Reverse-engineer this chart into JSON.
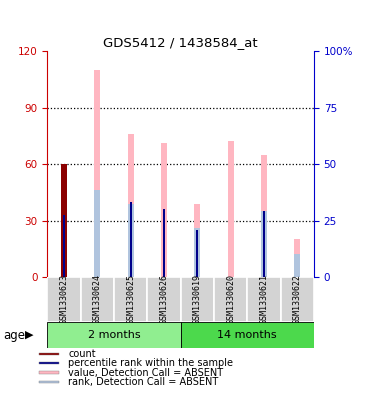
{
  "title": "GDS5412 / 1438584_at",
  "samples": [
    "GSM1330623",
    "GSM1330624",
    "GSM1330625",
    "GSM1330626",
    "GSM1330619",
    "GSM1330620",
    "GSM1330621",
    "GSM1330622"
  ],
  "ylim_left": [
    0,
    120
  ],
  "ylim_right": [
    0,
    100
  ],
  "yticks_left": [
    0,
    30,
    60,
    90,
    120
  ],
  "yticks_right": [
    0,
    25,
    50,
    75,
    100
  ],
  "ytick_labels_right": [
    "0",
    "25",
    "50",
    "75",
    "100%"
  ],
  "value_absent": [
    0,
    110,
    76,
    71,
    39,
    72,
    65,
    20
  ],
  "rank_absent": [
    0,
    46,
    39,
    0,
    26,
    0,
    35,
    12
  ],
  "count": [
    60,
    0,
    0,
    0,
    0,
    0,
    0,
    0
  ],
  "percentile_rank": [
    33,
    0,
    40,
    36,
    25,
    0,
    35,
    0
  ],
  "color_value_absent": "#FFB6C1",
  "color_rank_absent": "#B0C4DE",
  "color_count": "#8B0000",
  "color_percentile": "#00008B",
  "left_tick_color": "#cc0000",
  "right_tick_color": "#0000cc",
  "group1_color": "#90EE90",
  "group2_color": "#4CD94C",
  "legend_items": [
    "count",
    "percentile rank within the sample",
    "value, Detection Call = ABSENT",
    "rank, Detection Call = ABSENT"
  ],
  "legend_colors": [
    "#8B0000",
    "#00008B",
    "#FFB6C1",
    "#B0C4DE"
  ]
}
